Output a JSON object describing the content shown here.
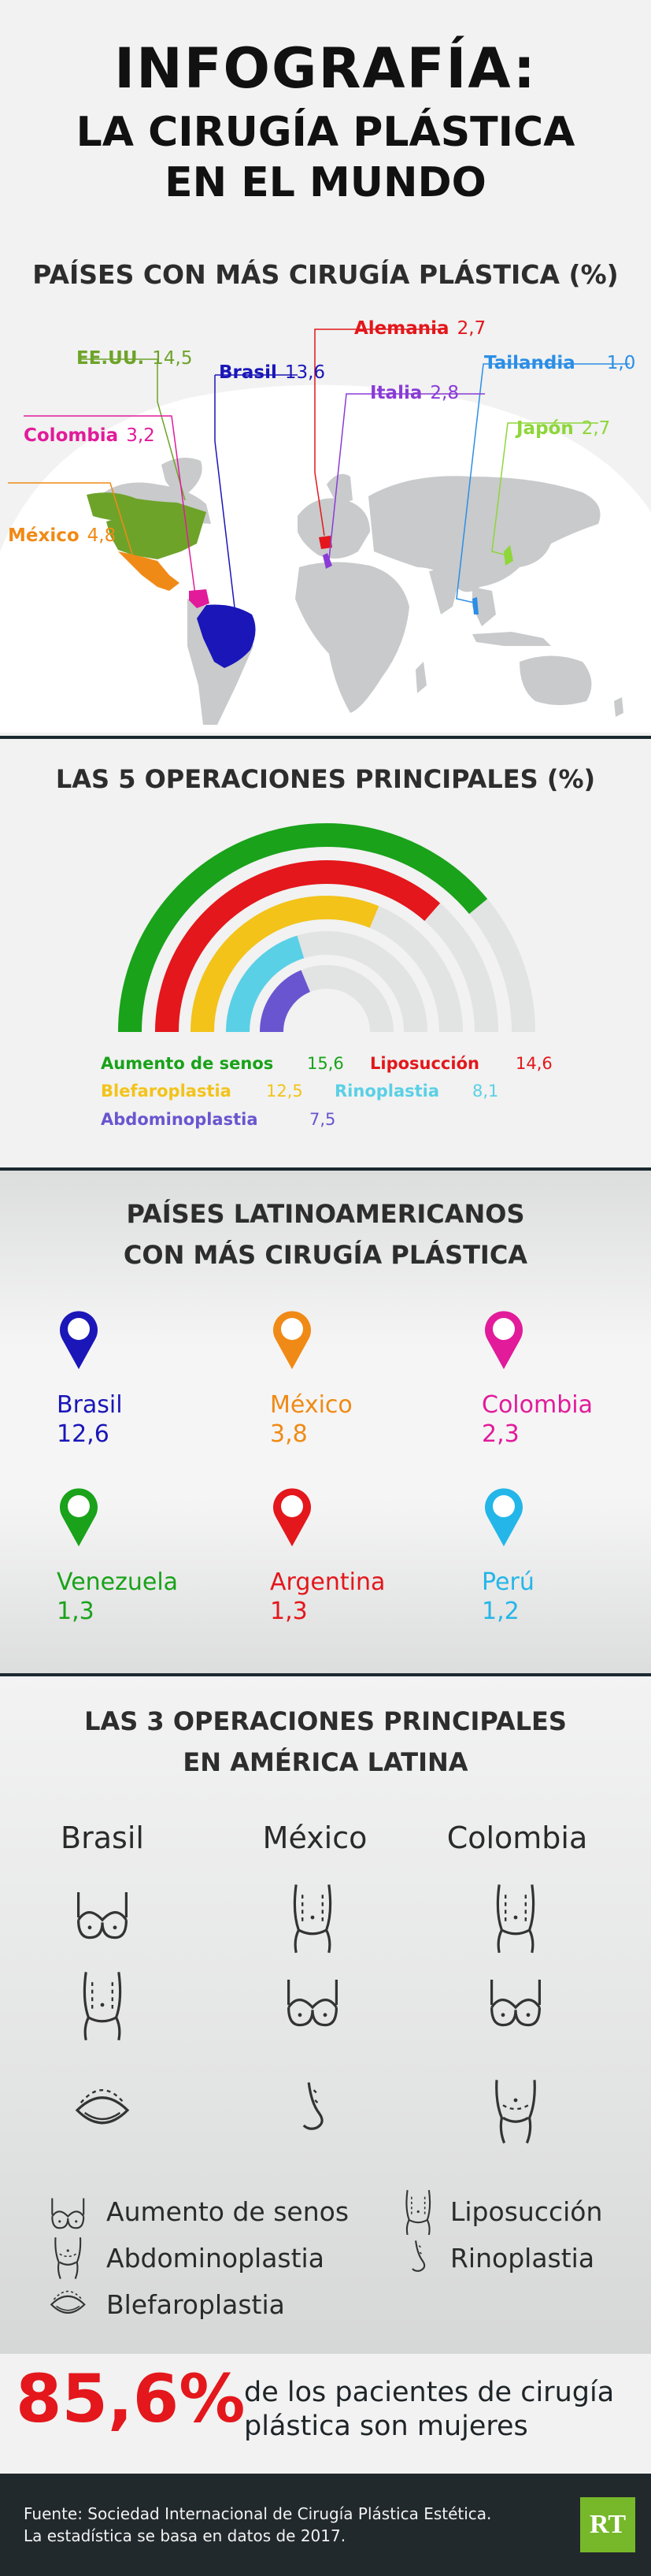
{
  "header": {
    "title_line1": "INFOGRAFÍA:",
    "title_line2": "LA CIRUGÍA PLÁSTICA",
    "title_line3": "EN EL MUNDO"
  },
  "world": {
    "heading": "PAÍSES CON MÁS CIRUGÍA PLÁSTICA (%)",
    "countries": [
      {
        "name": "Alemania",
        "value": "2,7",
        "color": "#e3171c"
      },
      {
        "name": "EE.UU.",
        "value": "14,5",
        "color": "#6ea32a"
      },
      {
        "name": "Brasil",
        "value": "13,6",
        "color": "#1a16b8"
      },
      {
        "name": "Tailandia",
        "value": "1,0",
        "color": "#2b8ee6"
      },
      {
        "name": "Italia",
        "value": "2,8",
        "color": "#8a3bd6"
      },
      {
        "name": "Colombia",
        "value": "3,2",
        "color": "#e11b9a"
      },
      {
        "name": "Japón",
        "value": "2,7",
        "color": "#8ed63a"
      },
      {
        "name": "México",
        "value": "4,8",
        "color": "#f08a16"
      }
    ]
  },
  "top5": {
    "heading": "LAS 5 OPERACIONES PRINCIPALES (%)",
    "items": [
      {
        "name": "Aumento de senos",
        "value": "15,6",
        "color": "#19a21a"
      },
      {
        "name": "Liposucción",
        "value": "14,6",
        "color": "#e3171c"
      },
      {
        "name": "Blefaroplastia",
        "value": "12,5",
        "color": "#f3c31a"
      },
      {
        "name": "Rinoplastia",
        "value": "8,1",
        "color": "#5ad0e6"
      },
      {
        "name": "Abdominoplastia",
        "value": "7,5",
        "color": "#6a55d0"
      }
    ]
  },
  "latam": {
    "heading_line1": "PAÍSES LATINOAMERICANOS",
    "heading_line2": "CON MÁS CIRUGÍA PLÁSTICA",
    "countries": [
      {
        "name": "Brasil",
        "value": "12,6",
        "color": "#1a16b8"
      },
      {
        "name": "México",
        "value": "3,8",
        "color": "#f08a16"
      },
      {
        "name": "Colombia",
        "value": "2,3",
        "color": "#e11b9a"
      },
      {
        "name": "Venezuela",
        "value": "1,3",
        "color": "#19a21a"
      },
      {
        "name": "Argentina",
        "value": "1,3",
        "color": "#e3171c"
      },
      {
        "name": "Perú",
        "value": "1,2",
        "color": "#24b6e8"
      }
    ]
  },
  "latam_ops": {
    "heading_line1": "LAS 3 OPERACIONES PRINCIPALES",
    "heading_line2": "EN AMÉRICA LATINA",
    "columns": [
      {
        "name": "Brasil",
        "ops": [
          "bra-icon",
          "lipo-icon",
          "eye-icon"
        ]
      },
      {
        "name": "México",
        "ops": [
          "lipo-icon",
          "bra-icon",
          "nose-icon"
        ]
      },
      {
        "name": "Colombia",
        "ops": [
          "lipo-icon",
          "bra-icon",
          "tummy-icon"
        ]
      }
    ],
    "legend": {
      "aumento": "Aumento de senos",
      "lipo": "Liposucción",
      "abdomino": "Abdominoplastia",
      "rino": "Rinoplastia",
      "blefaro": "Blefaroplastia"
    }
  },
  "stat": {
    "value": "85,6%",
    "text_line1": "de los pacientes de cirugía",
    "text_line2": "plástica son mujeres"
  },
  "footer": {
    "line1": "Fuente: Sociedad Internacional de Cirugía Plástica Estética.",
    "line2": "La estadística se basa en datos de 2017.",
    "logo": "RT"
  }
}
